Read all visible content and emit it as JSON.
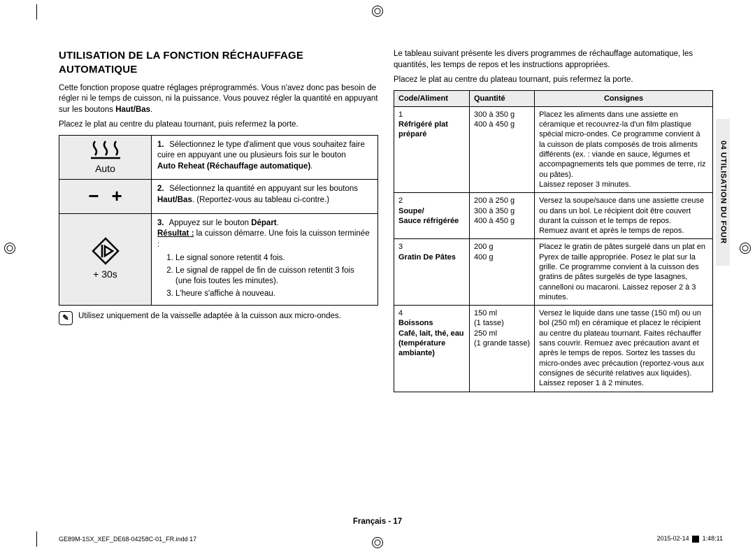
{
  "colors": {
    "page_bg": "#ffffff",
    "text": "#000000",
    "cell_shade": "#ececec",
    "border": "#000000"
  },
  "typography": {
    "body_fontsize_pt": 8.5,
    "title_fontsize_pt": 11,
    "font_family": "Arial"
  },
  "title": "UTILISATION DE LA FONCTION RÉCHAUFFAGE AUTOMATIQUE",
  "intro": {
    "p1a": "Cette fonction propose quatre réglages préprogrammés. Vous n'avez donc pas besoin de régler ni le temps de cuisson, ni la puissance. Vous pouvez régler la quantité en appuyant sur les boutons ",
    "p1b": "Haut/Bas",
    "p1c": ".",
    "p2": "Placez le plat au centre du plateau tournant, puis refermez la porte."
  },
  "steps": {
    "row1": {
      "num": "1.",
      "text_a": "Sélectionnez le type d'aliment que vous souhaitez faire cuire en appuyant une ou plusieurs fois sur le bouton ",
      "bold": "Auto Reheat (Réchauffage automatique)",
      "text_b": ".",
      "icon_label": "Auto"
    },
    "row2": {
      "num": "2.",
      "text_a": "Sélectionnez la quantité en appuyant sur les boutons ",
      "bold": "Haut/Bas",
      "text_b": ". (Reportez-vous au tableau ci-contre.)",
      "minus": "−",
      "plus": "+"
    },
    "row3": {
      "num": "3.",
      "text_a": "Appuyez sur le bouton ",
      "bold": "Départ",
      "text_b": ".",
      "result_label": "Résultat :",
      "result_text": " la cuisson démarre. Une fois la cuisson terminée :",
      "li1": "Le signal sonore retentit 4 fois.",
      "li2": "Le signal de rappel de fin de cuisson retentit 3 fois (une fois toutes les minutes).",
      "li3": "L'heure s'affiche à nouveau.",
      "icon_label": "+ 30s"
    }
  },
  "note": "Utilisez uniquement de la vaisselle adaptée à la cuisson aux micro-ondes.",
  "right": {
    "p1": "Le tableau suivant présente les divers programmes de réchauffage automatique, les quantités, les temps de repos et les instructions appropriées.",
    "p2": "Placez le plat au centre du plateau tournant, puis refermez la porte."
  },
  "prog_table": {
    "headers": {
      "code": "Code/Aliment",
      "qty": "Quantité",
      "instr": "Consignes"
    },
    "rows": [
      {
        "code_num": "1",
        "code_a": "Réfrigéré plat préparé",
        "qty": "300 à 350 g\n400 à 450 g",
        "instr": "Placez les aliments dans une assiette en céramique et recouvrez-la d'un film plastique spécial micro-ondes. Ce programme convient à la cuisson de plats composés de trois aliments différents (ex. : viande en sauce, légumes et accompagnements tels que pommes de terre, riz ou pâtes).\nLaissez reposer 3 minutes."
      },
      {
        "code_num": "2",
        "code_a": "Soupe/\nSauce réfrigérée",
        "qty": "200 à 250 g\n300 à 350 g\n400 à 450 g",
        "instr": "Versez la soupe/sauce dans une assiette creuse ou dans un bol. Le récipient doit être couvert durant la cuisson et le temps de repos.\nRemuez avant et après le temps de repos."
      },
      {
        "code_num": "3",
        "code_a": "Gratin De Pâtes",
        "qty": "200 g\n400 g",
        "instr": "Placez le gratin de pâtes surgelé dans un plat en Pyrex de taille appropriée. Posez le plat sur la grille. Ce programme convient à la cuisson des gratins de pâtes surgelés de type lasagnes, cannelloni ou macaroni. Laissez reposer 2 à 3 minutes."
      },
      {
        "code_num": "4",
        "code_a": "Boissons\nCafé, lait, thé, eau\n(température ambiante)",
        "qty": "150 ml\n(1 tasse)\n250 ml\n(1 grande tasse)",
        "instr": "Versez le liquide dans une tasse (150 ml) ou un bol (250 ml) en céramique et placez le récipient au centre du plateau tournant. Faites réchauffer sans couvrir. Remuez avec précaution avant et après le temps de repos. Sortez les tasses du micro-ondes avec précaution (reportez-vous aux consignes de sécurité relatives aux liquides).\nLaissez reposer 1 à 2 minutes."
      }
    ]
  },
  "side_tab": "04  UTILISATION DU FOUR",
  "footer": {
    "center": "Français - 17",
    "left": "GE89M-1SX_XEF_DE68-04258C-01_FR.indd   17",
    "right_date": "2015-02-14   ",
    "right_time": "1:48:11"
  }
}
